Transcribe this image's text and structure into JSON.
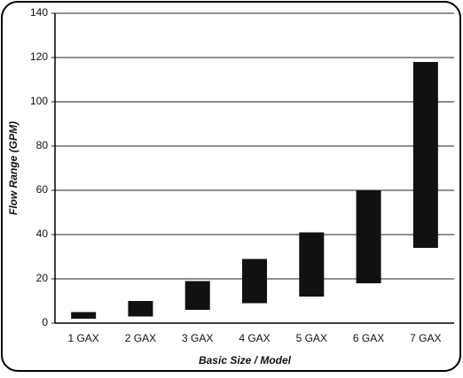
{
  "chart_data": {
    "type": "floating_bar",
    "x_label": "Basic Size / Model",
    "y_label": "Flow Range (GPM)",
    "categories": [
      "1 GAX",
      "2 GAX",
      "3 GAX",
      "4 GAX",
      "5 GAX",
      "6 GAX",
      "7 GAX"
    ],
    "low": [
      2,
      3,
      6,
      9,
      12,
      18,
      34
    ],
    "high": [
      5,
      10,
      19,
      29,
      41,
      60,
      118
    ],
    "color": "#111111",
    "ylim": [
      0,
      140
    ],
    "yticks": [
      0,
      20,
      40,
      60,
      80,
      100,
      120,
      140
    ],
    "grid": true
  }
}
